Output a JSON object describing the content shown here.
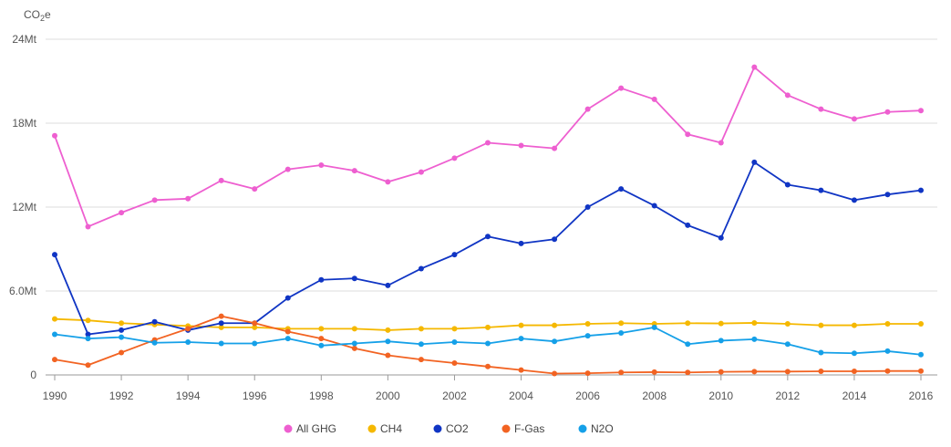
{
  "chart_data": {
    "type": "line",
    "unit_label": {
      "base": "CO",
      "sub": "2",
      "tail": "e"
    },
    "y_ticks": [
      {
        "value": 0,
        "label": "0"
      },
      {
        "value": 6,
        "label": "6.0Mt"
      },
      {
        "value": 12,
        "label": "12Mt"
      },
      {
        "value": 18,
        "label": "18Mt"
      },
      {
        "value": 24,
        "label": "24Mt"
      }
    ],
    "ylim": [
      0,
      24
    ],
    "x_ticks": [
      1990,
      1992,
      1994,
      1996,
      1998,
      2000,
      2002,
      2004,
      2006,
      2008,
      2010,
      2012,
      2014,
      2016
    ],
    "x": [
      1990,
      1991,
      1992,
      1993,
      1994,
      1995,
      1996,
      1997,
      1998,
      1999,
      2000,
      2001,
      2002,
      2003,
      2004,
      2005,
      2006,
      2007,
      2008,
      2009,
      2010,
      2011,
      2012,
      2013,
      2014,
      2015,
      2016
    ],
    "grid": true,
    "legend_position": "bottom",
    "series": [
      {
        "name": "All GHG",
        "color": "#ee5fd0",
        "values": [
          17.1,
          10.6,
          11.6,
          12.5,
          12.6,
          13.9,
          13.3,
          14.7,
          15.0,
          14.6,
          13.8,
          14.5,
          15.5,
          16.6,
          16.4,
          16.2,
          19.0,
          20.5,
          19.7,
          17.2,
          16.6,
          22.0,
          20.0,
          19.0,
          18.3,
          18.8,
          18.9
        ]
      },
      {
        "name": "CH4",
        "color": "#f5b800",
        "values": [
          4.0,
          3.9,
          3.7,
          3.6,
          3.5,
          3.4,
          3.4,
          3.3,
          3.3,
          3.3,
          3.2,
          3.3,
          3.3,
          3.4,
          3.55,
          3.55,
          3.65,
          3.7,
          3.65,
          3.7,
          3.68,
          3.72,
          3.65,
          3.55,
          3.55,
          3.65,
          3.65
        ]
      },
      {
        "name": "CO2",
        "color": "#1035c4",
        "values": [
          8.6,
          2.9,
          3.2,
          3.8,
          3.2,
          3.7,
          3.7,
          5.5,
          6.8,
          6.9,
          6.4,
          7.6,
          8.6,
          9.9,
          9.4,
          9.7,
          12.0,
          13.3,
          12.1,
          10.7,
          9.8,
          15.2,
          13.6,
          13.2,
          12.5,
          12.9,
          13.2
        ]
      },
      {
        "name": "F-Gas",
        "color": "#f26322",
        "values": [
          1.1,
          0.7,
          1.6,
          2.5,
          3.3,
          4.2,
          3.7,
          3.1,
          2.6,
          1.9,
          1.4,
          1.1,
          0.85,
          0.6,
          0.35,
          0.1,
          0.12,
          0.18,
          0.2,
          0.18,
          0.22,
          0.24,
          0.24,
          0.26,
          0.26,
          0.28,
          0.28
        ]
      },
      {
        "name": "N2O",
        "color": "#15a0e8",
        "values": [
          2.9,
          2.6,
          2.7,
          2.3,
          2.35,
          2.25,
          2.25,
          2.6,
          2.1,
          2.25,
          2.4,
          2.2,
          2.35,
          2.25,
          2.6,
          2.4,
          2.8,
          3.0,
          3.4,
          2.2,
          2.45,
          2.55,
          2.2,
          1.6,
          1.55,
          1.7,
          1.45
        ]
      }
    ]
  }
}
